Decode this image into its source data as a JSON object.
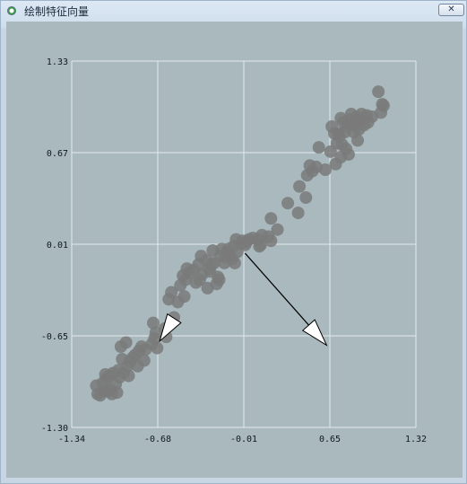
{
  "window": {
    "title": "绘制特征向量",
    "close_glyph": "✕"
  },
  "chart_data": {
    "type": "scatter",
    "title": "",
    "xlabel": "",
    "ylabel": "",
    "xlim": [
      -1.34,
      1.32
    ],
    "ylim": [
      -1.3,
      1.33
    ],
    "x_ticks": [
      "-1.34",
      "-0.68",
      "-0.01",
      "0.65",
      "1.32"
    ],
    "y_ticks": [
      "1.33",
      "0.67",
      "0.01",
      "-0.65",
      "-1.30"
    ],
    "grid": true,
    "point_color": "#7a7a7a",
    "arrow_color": "#000000",
    "arrowhead_fill": "#ffffff",
    "points": [
      [
        -1.15,
        -1.0
      ],
      [
        -1.14,
        -1.06
      ],
      [
        -1.12,
        -1.07
      ],
      [
        -1.1,
        -0.98
      ],
      [
        -1.09,
        -1.04
      ],
      [
        -1.08,
        -0.92
      ],
      [
        -1.07,
        -0.95
      ],
      [
        -1.06,
        -1.04
      ],
      [
        -1.05,
        -0.93
      ],
      [
        -1.04,
        -1.03
      ],
      [
        -1.03,
        -1.06
      ],
      [
        -1.02,
        -0.91
      ],
      [
        -1.0,
        -0.99
      ],
      [
        -0.99,
        -1.05
      ],
      [
        -0.98,
        -0.89
      ],
      [
        -0.97,
        -0.94
      ],
      [
        -0.96,
        -0.72
      ],
      [
        -0.95,
        -0.81
      ],
      [
        -0.94,
        -0.91
      ],
      [
        -0.92,
        -0.69
      ],
      [
        -0.91,
        -0.86
      ],
      [
        -0.9,
        -0.93
      ],
      [
        -0.89,
        -0.83
      ],
      [
        -0.87,
        -0.8
      ],
      [
        -0.85,
        -0.78
      ],
      [
        -0.83,
        -0.86
      ],
      [
        -0.82,
        -0.75
      ],
      [
        -0.8,
        -0.72
      ],
      [
        -0.78,
        -0.82
      ],
      [
        -0.77,
        -0.74
      ],
      [
        -0.72,
        -0.7
      ],
      [
        -0.71,
        -0.55
      ],
      [
        -0.7,
        -0.66
      ],
      [
        -0.69,
        -0.62
      ],
      [
        -0.68,
        -0.73
      ],
      [
        -0.62,
        -0.59
      ],
      [
        -0.61,
        -0.65
      ],
      [
        -0.59,
        -0.38
      ],
      [
        -0.57,
        -0.33
      ],
      [
        -0.55,
        -0.51
      ],
      [
        -0.52,
        -0.4
      ],
      [
        -0.5,
        -0.28
      ],
      [
        -0.48,
        -0.21
      ],
      [
        -0.47,
        -0.36
      ],
      [
        -0.46,
        -0.24
      ],
      [
        -0.45,
        -0.16
      ],
      [
        -0.43,
        -0.19
      ],
      [
        -0.4,
        -0.17
      ],
      [
        -0.38,
        -0.26
      ],
      [
        -0.36,
        -0.13
      ],
      [
        -0.35,
        -0.24
      ],
      [
        -0.34,
        -0.07
      ],
      [
        -0.33,
        -0.2
      ],
      [
        -0.3,
        -0.1
      ],
      [
        -0.29,
        -0.3
      ],
      [
        -0.28,
        -0.16
      ],
      [
        -0.27,
        -0.18
      ],
      [
        -0.26,
        -0.13
      ],
      [
        -0.25,
        -0.03
      ],
      [
        -0.24,
        -0.12
      ],
      [
        -0.22,
        -0.27
      ],
      [
        -0.21,
        -0.22
      ],
      [
        -0.2,
        -0.24
      ],
      [
        -0.19,
        -0.07
      ],
      [
        -0.18,
        -0.02
      ],
      [
        -0.16,
        -0.12
      ],
      [
        -0.15,
        -0.08
      ],
      [
        -0.14,
        -0.04
      ],
      [
        -0.13,
        -0.02
      ],
      [
        -0.12,
        -0.06
      ],
      [
        -0.1,
        -0.09
      ],
      [
        -0.09,
        0.0
      ],
      [
        -0.08,
        -0.12
      ],
      [
        -0.07,
        0.05
      ],
      [
        -0.06,
        -0.04
      ],
      [
        -0.03,
        0.02
      ],
      [
        -0.02,
        0.04
      ],
      [
        0.0,
        0.01
      ],
      [
        0.01,
        0.03
      ],
      [
        0.03,
        0.05
      ],
      [
        0.06,
        0.06
      ],
      [
        0.1,
        0.05
      ],
      [
        0.11,
        0.0
      ],
      [
        0.12,
        0.01
      ],
      [
        0.13,
        0.08
      ],
      [
        0.18,
        0.07
      ],
      [
        0.2,
        0.2
      ],
      [
        0.2,
        0.04
      ],
      [
        0.25,
        0.12
      ],
      [
        0.33,
        0.31
      ],
      [
        0.41,
        0.24
      ],
      [
        0.42,
        0.43
      ],
      [
        0.47,
        0.35
      ],
      [
        0.48,
        0.51
      ],
      [
        0.5,
        0.58
      ],
      [
        0.52,
        0.54
      ],
      [
        0.55,
        0.57
      ],
      [
        0.57,
        0.71
      ],
      [
        0.62,
        0.55
      ],
      [
        0.66,
        0.68
      ],
      [
        0.67,
        0.86
      ],
      [
        0.69,
        0.81
      ],
      [
        0.7,
        0.59
      ],
      [
        0.71,
        0.74
      ],
      [
        0.72,
        0.81
      ],
      [
        0.73,
        0.79
      ],
      [
        0.74,
        0.92
      ],
      [
        0.74,
        0.64
      ],
      [
        0.75,
        0.73
      ],
      [
        0.76,
        0.89
      ],
      [
        0.77,
        0.82
      ],
      [
        0.78,
        0.7
      ],
      [
        0.79,
        0.86
      ],
      [
        0.8,
        0.66
      ],
      [
        0.81,
        0.91
      ],
      [
        0.82,
        0.95
      ],
      [
        0.83,
        0.87
      ],
      [
        0.84,
        0.82
      ],
      [
        0.85,
        0.89
      ],
      [
        0.86,
        0.93
      ],
      [
        0.87,
        0.76
      ],
      [
        0.88,
        0.84
      ],
      [
        0.89,
        0.91
      ],
      [
        0.9,
        0.95
      ],
      [
        0.92,
        0.87
      ],
      [
        0.94,
        0.94
      ],
      [
        0.95,
        0.89
      ],
      [
        0.98,
        0.93
      ],
      [
        1.03,
        1.11
      ],
      [
        1.05,
        0.96
      ],
      [
        1.06,
        1.02
      ],
      [
        1.07,
        1.01
      ]
    ],
    "vectors": [
      {
        "start": [
          0.0,
          -0.05
        ],
        "end": [
          0.63,
          -0.71
        ]
      },
      {
        "start": [
          -0.55,
          -0.52
        ],
        "end": [
          -0.66,
          -0.68
        ]
      }
    ]
  }
}
